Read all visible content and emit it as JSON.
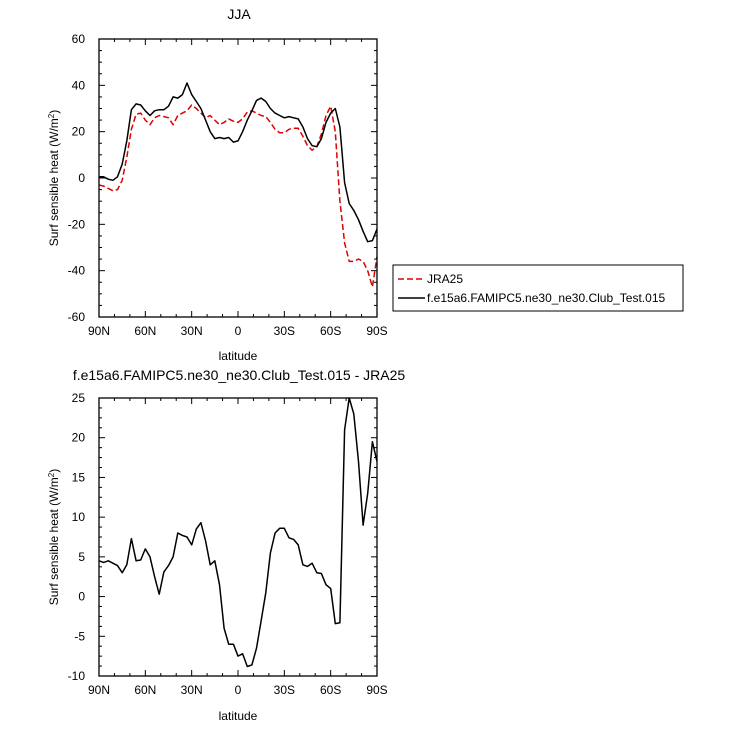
{
  "chart_data": [
    {
      "type": "line",
      "title": "JJA",
      "xlabel": "latitude",
      "ylabel": "Surf sensible heat (W/m",
      "ylabel_sup": "2",
      "ylabel_close": ")",
      "xlim": [
        90,
        -90
      ],
      "ylim": [
        -60,
        60
      ],
      "x_ticks": [
        90,
        60,
        30,
        0,
        -30,
        -60,
        -90
      ],
      "x_tick_labels": [
        "90N",
        "60N",
        "30N",
        "0",
        "30S",
        "60S",
        "90S"
      ],
      "y_ticks": [
        -60,
        -40,
        -20,
        0,
        20,
        40,
        60
      ],
      "y_tick_labels": [
        "-60",
        "-40",
        "-20",
        "0",
        "20",
        "40",
        "60"
      ],
      "grid": false,
      "legend_position": "right",
      "series": [
        {
          "name": "JRA25",
          "color": "#e00000",
          "dash": "dashed",
          "x": [
            90,
            87,
            84,
            81,
            78,
            75,
            72,
            69,
            66,
            63,
            60,
            57,
            54,
            51,
            48,
            45,
            42,
            39,
            36,
            33,
            30,
            27,
            24,
            21,
            18,
            15,
            12,
            9,
            6,
            3,
            0,
            -3,
            -6,
            -9,
            -12,
            -15,
            -18,
            -21,
            -24,
            -27,
            -30,
            -33,
            -36,
            -39,
            -42,
            -45,
            -48,
            -51,
            -54,
            -57,
            -60,
            -63,
            -66,
            -69,
            -72,
            -75,
            -78,
            -81,
            -84,
            -87,
            -90
          ],
          "y": [
            -3,
            -3.5,
            -4.5,
            -5.5,
            -5,
            -1,
            9,
            21,
            27.5,
            28,
            25,
            23,
            26,
            27,
            26.5,
            26,
            23,
            27,
            28,
            29,
            31.5,
            30,
            28,
            26,
            27,
            25,
            23,
            24,
            25.5,
            24.5,
            24,
            25.5,
            28.5,
            29,
            28,
            27,
            26.5,
            24,
            21,
            19.5,
            19.5,
            21,
            21.5,
            21.5,
            18,
            14,
            12,
            13.5,
            19,
            27,
            31,
            20,
            -10,
            -28,
            -36,
            -36,
            -35,
            -36,
            -40,
            -47,
            -34
          ]
        },
        {
          "name": "f.e15a6.FAMIPC5.ne30_ne30.Club_Test.015",
          "color": "#000000",
          "dash": "solid",
          "x": [
            90,
            87,
            84,
            81,
            78,
            75,
            72,
            69,
            66,
            63,
            60,
            57,
            54,
            51,
            48,
            45,
            42,
            39,
            36,
            33,
            30,
            27,
            24,
            21,
            18,
            15,
            12,
            9,
            6,
            3,
            0,
            -3,
            -6,
            -9,
            -12,
            -15,
            -18,
            -21,
            -24,
            -27,
            -30,
            -33,
            -36,
            -39,
            -42,
            -45,
            -48,
            -51,
            -54,
            -57,
            -60,
            -63,
            -66,
            -69,
            -72,
            -75,
            -78,
            -81,
            -84,
            -87,
            -90
          ],
          "y": [
            0.5,
            0.5,
            -0.5,
            -1,
            0.5,
            6,
            16,
            29.5,
            32,
            31.5,
            29,
            27,
            29,
            29.5,
            29.5,
            31,
            35,
            34.5,
            36,
            41,
            36,
            33,
            30,
            25,
            20,
            17,
            17.5,
            17,
            17.5,
            15.5,
            16,
            20,
            25,
            29,
            33.5,
            34.5,
            33,
            30,
            28,
            27,
            26,
            26.5,
            26,
            25.5,
            22,
            17,
            14,
            13.5,
            17,
            24,
            28,
            30,
            22,
            -2,
            -11,
            -14,
            -18,
            -23,
            -27.5,
            -27,
            -22
          ]
        }
      ]
    },
    {
      "type": "line",
      "title": "f.e15a6.FAMIPC5.ne30_ne30.Club_Test.015 - JRA25",
      "xlabel": "latitude",
      "ylabel": "Surf sensible heat (W/m",
      "ylabel_sup": "2",
      "ylabel_close": ")",
      "xlim": [
        90,
        -90
      ],
      "ylim": [
        -10,
        25
      ],
      "x_ticks": [
        90,
        60,
        30,
        0,
        -30,
        -60,
        -90
      ],
      "x_tick_labels": [
        "90N",
        "60N",
        "30N",
        "0",
        "30S",
        "60S",
        "90S"
      ],
      "y_ticks": [
        -10,
        -5,
        0,
        5,
        10,
        15,
        20,
        25
      ],
      "y_tick_labels": [
        "-10",
        "-5",
        "0",
        "5",
        "10",
        "15",
        "20",
        "25"
      ],
      "grid": false,
      "series": [
        {
          "name": "",
          "color": "#000000",
          "dash": "solid",
          "x": [
            90,
            87,
            84,
            81,
            78,
            75,
            72,
            69,
            66,
            63,
            60,
            57,
            54,
            51,
            48,
            45,
            42,
            39,
            36,
            33,
            30,
            27,
            24,
            21,
            18,
            15,
            12,
            9,
            6,
            3,
            0,
            -3,
            -6,
            -9,
            -12,
            -15,
            -18,
            -21,
            -24,
            -27,
            -30,
            -33,
            -36,
            -39,
            -42,
            -45,
            -48,
            -51,
            -54,
            -57,
            -60,
            -63,
            -66,
            -69,
            -72,
            -75,
            -78,
            -81,
            -84,
            -87,
            -90
          ],
          "y": [
            4.5,
            4.3,
            4.5,
            4.2,
            3.9,
            3,
            4,
            7.3,
            4.5,
            4.6,
            6,
            5,
            2.5,
            0.3,
            3.1,
            3.9,
            5,
            8,
            7.7,
            7.5,
            6.5,
            8.5,
            9.3,
            7,
            4,
            4.5,
            1.5,
            -4,
            -6,
            -6,
            -7.5,
            -7.2,
            -8.8,
            -8.6,
            -6.5,
            -3,
            0.5,
            5.5,
            8,
            8.6,
            8.6,
            7.4,
            7.2,
            6.5,
            4,
            3.8,
            4.2,
            3,
            2.9,
            1.5,
            1,
            -3.4,
            -3.3,
            21,
            25,
            23,
            17,
            9,
            13,
            19.5,
            17
          ]
        }
      ]
    }
  ]
}
